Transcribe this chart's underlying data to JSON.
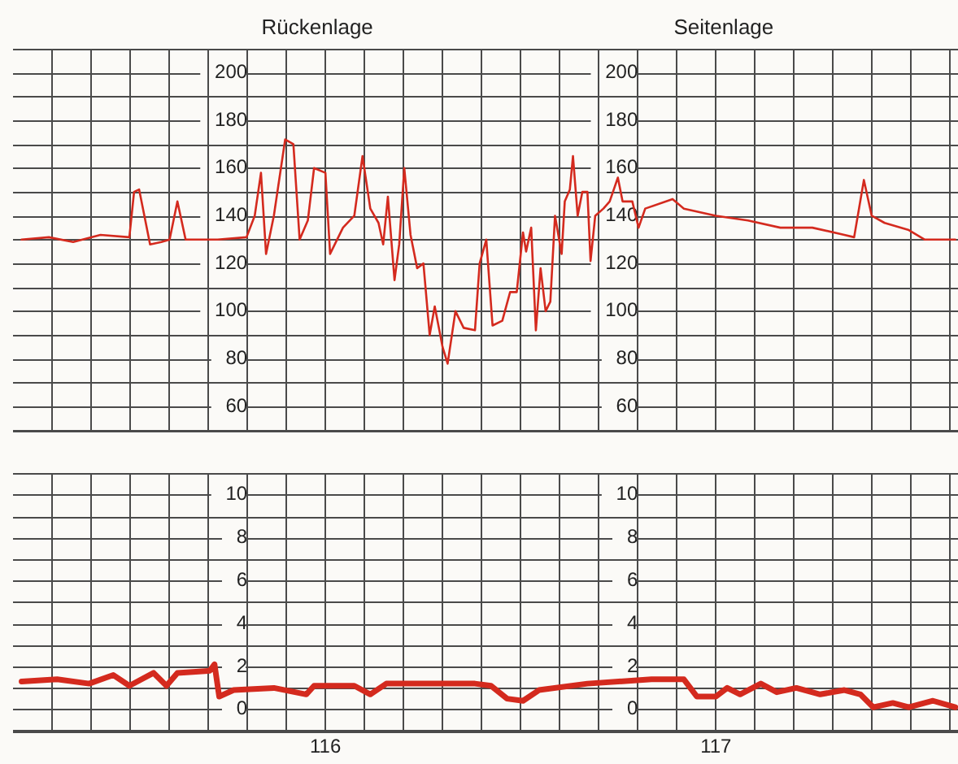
{
  "chart_data": [
    {
      "type": "line",
      "annotations": [
        "Rückenlage",
        "Seitenlage"
      ],
      "series": [
        {
          "color": "#d42a1e",
          "x": [
            115.222,
            115.292,
            115.354,
            115.424,
            115.498,
            115.51,
            115.523,
            115.551,
            115.58,
            115.601,
            115.621,
            115.642,
            115.724,
            115.798,
            115.819,
            115.835,
            115.848,
            115.868,
            115.897,
            115.918,
            115.934,
            115.955,
            115.971,
            116.0,
            116.012,
            116.045,
            116.074,
            116.095,
            116.115,
            116.136,
            116.148,
            116.16,
            116.177,
            116.189,
            116.202,
            116.218,
            116.235,
            116.251,
            116.267,
            116.28,
            116.3,
            116.313,
            116.333,
            116.354,
            116.383,
            116.395,
            116.412,
            116.428,
            116.453,
            116.473,
            116.49,
            116.506,
            116.514,
            116.527,
            116.539,
            116.551,
            116.564,
            116.576,
            116.588,
            116.605,
            116.613,
            116.626,
            116.634,
            116.646,
            116.658,
            116.671,
            116.679,
            116.691,
            116.712,
            116.728,
            116.749,
            116.761,
            116.786,
            116.802,
            116.819,
            116.889,
            116.918,
            117.0,
            117.082,
            117.165,
            117.247,
            117.329,
            117.354,
            117.379,
            117.399,
            117.432,
            117.494,
            117.535,
            117.613
          ],
          "values": [
            130,
            131,
            129,
            132,
            131,
            150,
            151,
            128,
            129,
            130,
            146,
            130,
            130,
            131,
            140,
            158,
            124,
            140,
            172,
            170,
            130,
            138,
            160,
            158,
            124,
            135,
            140,
            165,
            143,
            137,
            128,
            148,
            113,
            128,
            160,
            132,
            118,
            120,
            90,
            102,
            85,
            78,
            100,
            93,
            92,
            120,
            130,
            94,
            96,
            108,
            108,
            133,
            125,
            135,
            92,
            118,
            100,
            104,
            140,
            124,
            146,
            151,
            165,
            140,
            150,
            150,
            121,
            140,
            143,
            146,
            156,
            146,
            146,
            135,
            143,
            147,
            143,
            140,
            138,
            135,
            135,
            132,
            131,
            155,
            140,
            137,
            134,
            130,
            130
          ]
        }
      ],
      "xlim": [
        115.2,
        117.62
      ],
      "xticks": [
        {
          "value": 115.3,
          "label": null
        },
        {
          "value": 115.4,
          "label": null
        },
        {
          "value": 115.5,
          "label": null
        },
        {
          "value": 115.6,
          "label": null
        },
        {
          "value": 115.7,
          "label": null
        },
        {
          "value": 115.8,
          "label": null
        },
        {
          "value": 115.9,
          "label": null
        },
        {
          "value": 116,
          "label": null
        },
        {
          "value": 116.1,
          "label": null
        },
        {
          "value": 116.2,
          "label": null
        },
        {
          "value": 116.3,
          "label": null
        },
        {
          "value": 116.4,
          "label": null
        },
        {
          "value": 116.5,
          "label": null
        },
        {
          "value": 116.6,
          "label": null
        },
        {
          "value": 116.7,
          "label": null
        },
        {
          "value": 116.8,
          "label": null
        },
        {
          "value": 116.9,
          "label": null
        },
        {
          "value": 117,
          "label": null
        },
        {
          "value": 117.1,
          "label": null
        },
        {
          "value": 117.2,
          "label": null
        },
        {
          "value": 117.3,
          "label": null
        },
        {
          "value": 117.4,
          "label": null
        },
        {
          "value": 117.5,
          "label": null
        },
        {
          "value": 117.6,
          "label": null
        }
      ],
      "ylim": [
        50,
        210
      ],
      "yticks": [
        {
          "value": 50,
          "label": null
        },
        60,
        {
          "value": 70,
          "label": null
        },
        80,
        {
          "value": 90,
          "label": null
        },
        100,
        {
          "value": 110,
          "label": null
        },
        120,
        {
          "value": 130,
          "label": null
        },
        140,
        {
          "value": 150,
          "label": null
        },
        160,
        {
          "value": 170,
          "label": null
        },
        180,
        {
          "value": 190,
          "label": null
        },
        200,
        {
          "value": 210,
          "label": null
        }
      ],
      "y2lim": [
        50,
        210
      ],
      "y2ticks": [
        {
          "value": 50,
          "label": null
        },
        60,
        {
          "value": 70,
          "label": null
        },
        80,
        {
          "value": 90,
          "label": null
        },
        100,
        {
          "value": 110,
          "label": null
        },
        120,
        {
          "value": 130,
          "label": null
        },
        140,
        {
          "value": 150,
          "label": null
        },
        160,
        {
          "value": 170,
          "label": null
        },
        180,
        {
          "value": 190,
          "label": null
        },
        200,
        {
          "value": 210,
          "label": null
        }
      ],
      "tick_labels": "y",
      "grid": true,
      "legend": false,
      "marker": "none",
      "line_style": "solid"
    },
    {
      "type": "line",
      "series": [
        {
          "color": "#d42a1e",
          "x": [
            115.222,
            115.313,
            115.395,
            115.457,
            115.498,
            115.56,
            115.593,
            115.621,
            115.704,
            115.716,
            115.728,
            115.765,
            115.868,
            115.951,
            115.971,
            116.074,
            116.115,
            116.156,
            116.383,
            116.424,
            116.465,
            116.506,
            116.547,
            116.671,
            116.835,
            116.918,
            116.951,
            117.0,
            117.029,
            117.062,
            117.115,
            117.156,
            117.206,
            117.267,
            117.329,
            117.37,
            117.403,
            117.453,
            117.494,
            117.556,
            117.613
          ],
          "values": [
            1.3,
            1.4,
            1.2,
            1.6,
            1.1,
            1.7,
            1.1,
            1.7,
            1.8,
            2.1,
            0.6,
            0.9,
            1.0,
            0.7,
            1.1,
            1.1,
            0.7,
            1.2,
            1.2,
            1.1,
            0.5,
            0.4,
            0.9,
            1.2,
            1.4,
            1.4,
            0.6,
            0.6,
            1.0,
            0.7,
            1.2,
            0.8,
            1.0,
            0.7,
            0.9,
            0.7,
            0.1,
            0.3,
            0.1,
            0.4,
            0.1
          ]
        }
      ],
      "xlim": [
        115.2,
        117.62
      ],
      "xticks": [
        {
          "value": 115.3,
          "label": null
        },
        {
          "value": 115.4,
          "label": null
        },
        {
          "value": 115.5,
          "label": null
        },
        {
          "value": 115.6,
          "label": null
        },
        {
          "value": 115.7,
          "label": null
        },
        {
          "value": 115.8,
          "label": null
        },
        {
          "value": 115.9,
          "label": null
        },
        116,
        {
          "value": 116.1,
          "label": null
        },
        {
          "value": 116.2,
          "label": null
        },
        {
          "value": 116.3,
          "label": null
        },
        {
          "value": 116.4,
          "label": null
        },
        {
          "value": 116.5,
          "label": null
        },
        {
          "value": 116.6,
          "label": null
        },
        {
          "value": 116.7,
          "label": null
        },
        {
          "value": 116.8,
          "label": null
        },
        {
          "value": 116.9,
          "label": null
        },
        117,
        {
          "value": 117.1,
          "label": null
        },
        {
          "value": 117.2,
          "label": null
        },
        {
          "value": 117.3,
          "label": null
        },
        {
          "value": 117.4,
          "label": null
        },
        {
          "value": 117.5,
          "label": null
        },
        {
          "value": 117.6,
          "label": null
        }
      ],
      "ylim": [
        -1,
        11
      ],
      "yticks": [
        {
          "value": -1,
          "label": null
        },
        0,
        {
          "value": 1,
          "label": null
        },
        2,
        {
          "value": 3,
          "label": null
        },
        4,
        {
          "value": 5,
          "label": null
        },
        6,
        {
          "value": 7,
          "label": null
        },
        8,
        {
          "value": 9,
          "label": null
        },
        10,
        {
          "value": 11,
          "label": null
        }
      ],
      "y2lim": [
        -1,
        11
      ],
      "y2ticks": [
        {
          "value": -1,
          "label": null
        },
        0,
        {
          "value": 1,
          "label": null
        },
        2,
        {
          "value": 3,
          "label": null
        },
        4,
        {
          "value": 5,
          "label": null
        },
        6,
        {
          "value": 7,
          "label": null
        },
        8,
        {
          "value": 9,
          "label": null
        },
        10,
        {
          "value": 11,
          "label": null
        }
      ],
      "grid": true,
      "legend": false,
      "marker": "none",
      "line_style": "solid"
    }
  ]
}
